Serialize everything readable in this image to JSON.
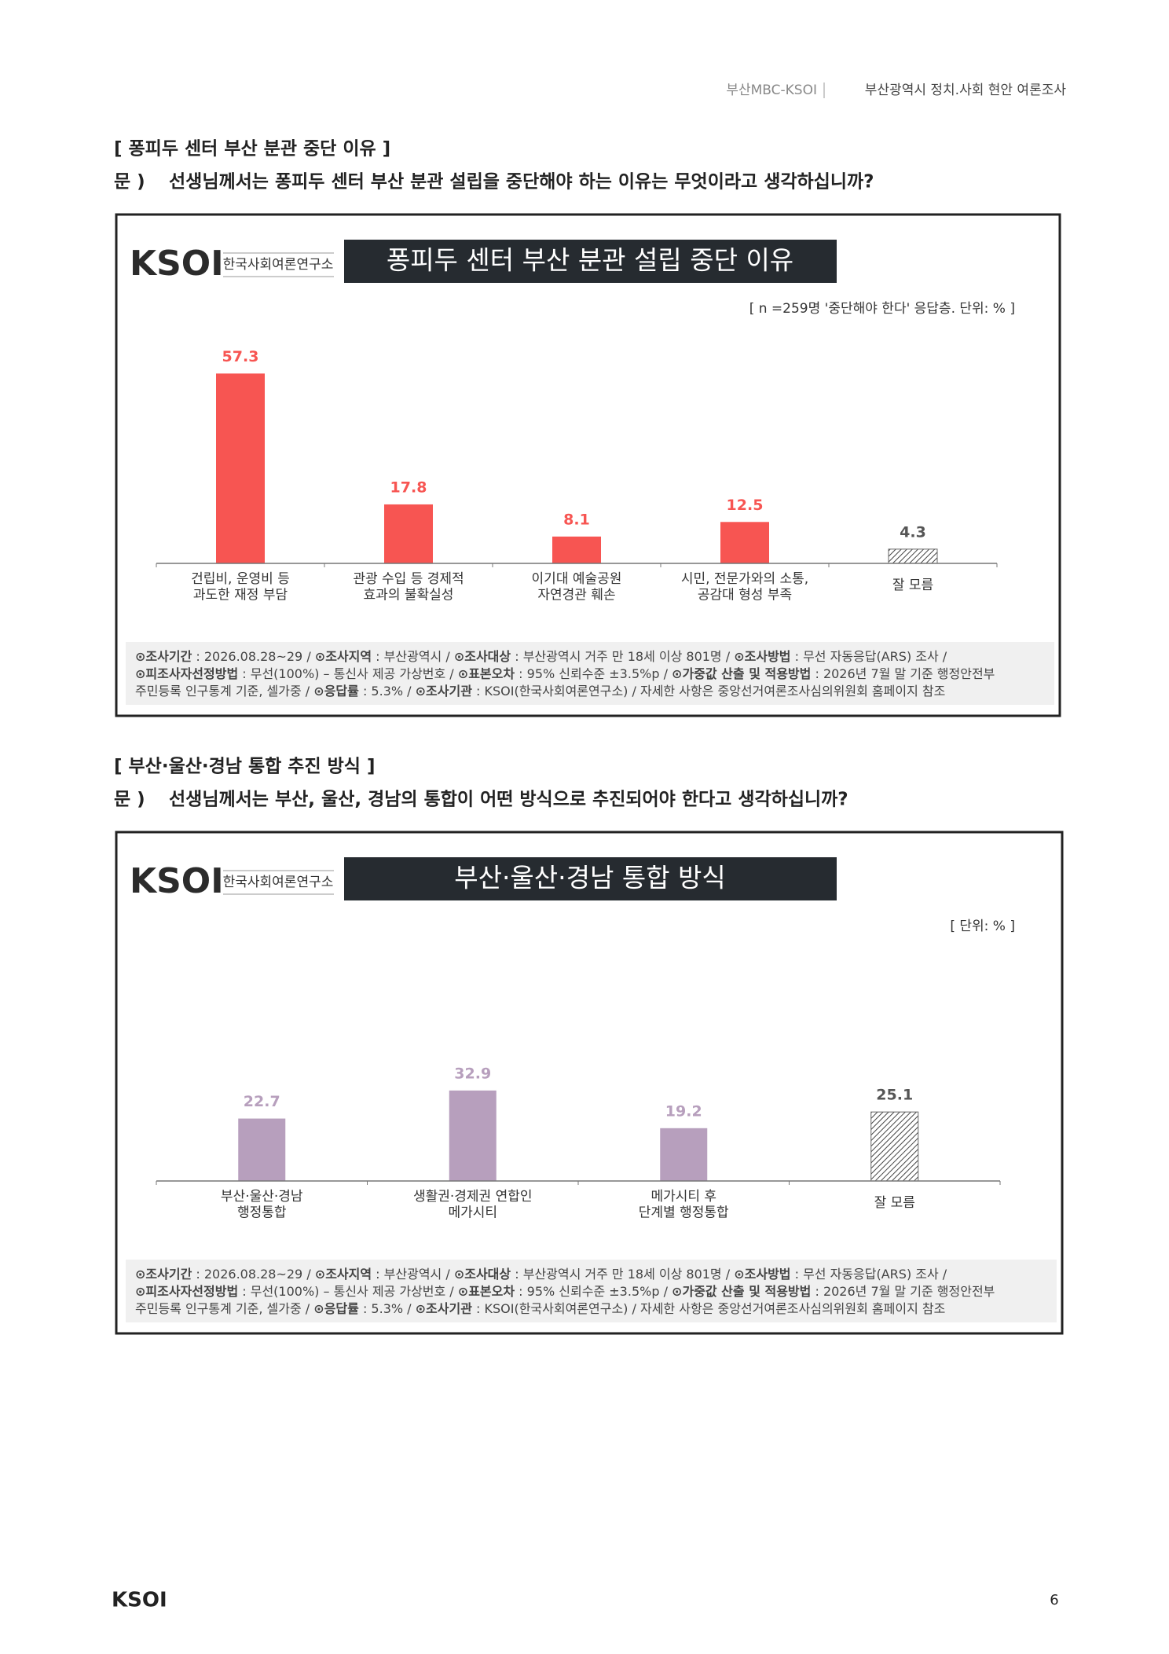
{
  "header": {
    "left": "부산MBC-KSOI",
    "right": "부산광역시 정치.사회 현안 여론조사"
  },
  "logo": {
    "mark": "KSOI",
    "name": "한국사회여론연구소"
  },
  "page_number": "6",
  "sections": [
    {
      "heading": "[ 퐁피두 센터 부산 분관 중단 이유 ]",
      "question_prefix": "문 )",
      "question": "선생님께서는 퐁피두 센터 부산 분관 설립을 중단해야 하는 이유는 무엇이라고 생각하십니까?"
    },
    {
      "heading": "[ 부산·울산·경남 통합 추진 방식 ]",
      "question_prefix": "문 )",
      "question": "선생님께서는 부산, 울산, 경남의 통합이 어떤 방식으로 추진되어야 한다고 생각하십니까?"
    }
  ],
  "chart_data": [
    {
      "type": "bar",
      "title": "퐁피두 센터 부산 분관 설립 중단 이유",
      "note": "[ n =259명 '중단해야 한다' 응답층. 단위: % ]",
      "categories": [
        "건립비, 운영비 등\n과도한 재정 부담",
        "관광 수입 등 경제적\n효과의 불확실성",
        "이기대 예술공원\n자연경관 훼손",
        "시민, 전문가와의 소통,\n공감대 형성 부족",
        "잘 모름"
      ],
      "values": [
        57.3,
        17.8,
        8.1,
        12.5,
        4.3
      ],
      "color": "#f75552",
      "hatched": [
        false,
        false,
        false,
        false,
        true
      ],
      "ylim": [
        0,
        60
      ],
      "footnote": [
        [
          {
            "text": "⊙조사기간",
            "bold": true
          },
          {
            "text": " : 2026.08.28~29 / "
          },
          {
            "text": "⊙조사지역",
            "bold": true
          },
          {
            "text": " : 부산광역시 / "
          },
          {
            "text": "⊙조사대상",
            "bold": true
          },
          {
            "text": " : 부산광역시 거주 만 18세 이상 801명 / "
          },
          {
            "text": "⊙조사방법",
            "bold": true
          },
          {
            "text": " : 무선 자동응답(ARS) 조사 /"
          }
        ],
        [
          {
            "text": "⊙피조사자선정방법",
            "bold": true
          },
          {
            "text": " : 무선(100%) – 통신사 제공 가상번호 / "
          },
          {
            "text": "⊙표본오차",
            "bold": true
          },
          {
            "text": " : 95% 신뢰수준 ±3.5%p / "
          },
          {
            "text": "⊙가중값 산출 및 적용방법",
            "bold": true
          },
          {
            "text": " : 2026년 7월 말 기준 행정안전부"
          }
        ],
        [
          {
            "text": "주민등록 인구통계 기준, 셀가중 / "
          },
          {
            "text": "⊙응답률",
            "bold": true
          },
          {
            "text": " : 5.3% / "
          },
          {
            "text": "⊙조사기관",
            "bold": true
          },
          {
            "text": " : KSOI(한국사회여론연구소) / 자세한 사항은 중앙선거여론조사심의위원회 홈페이지 참조"
          }
        ]
      ]
    },
    {
      "type": "bar",
      "title": "부산·울산·경남 통합 방식",
      "note": "[ 단위: % ]",
      "categories": [
        "부산·울산·경남\n행정통합",
        "생활권·경제권 연합인\n메가시티",
        "메가시티 후\n단계별 행정통합",
        "잘 모름"
      ],
      "values": [
        22.7,
        32.9,
        19.2,
        25.1
      ],
      "color": "#b79fbd",
      "hatched": [
        false,
        false,
        false,
        true
      ],
      "ylim": [
        0,
        60
      ],
      "footnote": [
        [
          {
            "text": "⊙조사기간",
            "bold": true
          },
          {
            "text": " : 2026.08.28~29 / "
          },
          {
            "text": "⊙조사지역",
            "bold": true
          },
          {
            "text": " : 부산광역시 / "
          },
          {
            "text": "⊙조사대상",
            "bold": true
          },
          {
            "text": " : 부산광역시 거주 만 18세 이상 801명 / "
          },
          {
            "text": "⊙조사방법",
            "bold": true
          },
          {
            "text": " : 무선 자동응답(ARS) 조사 /"
          }
        ],
        [
          {
            "text": "⊙피조사자선정방법",
            "bold": true
          },
          {
            "text": " : 무선(100%) – 통신사 제공 가상번호 / "
          },
          {
            "text": "⊙표본오차",
            "bold": true
          },
          {
            "text": " : 95% 신뢰수준 ±3.5%p / "
          },
          {
            "text": "⊙가중값 산출 및 적용방법",
            "bold": true
          },
          {
            "text": " : 2026년 7월 말 기준 행정안전부"
          }
        ],
        [
          {
            "text": "주민등록 인구통계 기준, 셀가중 / "
          },
          {
            "text": "⊙응답률",
            "bold": true
          },
          {
            "text": " : 5.3% / "
          },
          {
            "text": "⊙조사기관",
            "bold": true
          },
          {
            "text": " : KSOI(한국사회여론연구소) / 자세한 사항은 중앙선거여론조사심의위원회 홈페이지 참조"
          }
        ]
      ]
    }
  ]
}
